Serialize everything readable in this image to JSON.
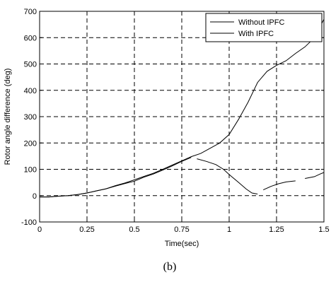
{
  "chart_data": {
    "type": "line",
    "xlabel": "Time(sec)",
    "ylabel": "Rotor angle difference (deg)",
    "xlim": [
      0,
      1.5
    ],
    "ylim": [
      -100,
      700
    ],
    "x_ticks": [
      0,
      0.25,
      0.5,
      0.75,
      1,
      1.25,
      1.5
    ],
    "x_tick_labels": [
      "0",
      "0.25",
      "0.5",
      "0.75",
      "1",
      "1.25",
      "1.5"
    ],
    "y_ticks": [
      -100,
      0,
      100,
      200,
      300,
      400,
      500,
      600,
      700
    ],
    "y_tick_labels": [
      "-100",
      "0",
      "100",
      "200",
      "300",
      "400",
      "500",
      "600",
      "700"
    ],
    "grid": true,
    "grid_style": "dashed",
    "legend_position": "top-right",
    "series": [
      {
        "name": "Without IPFC",
        "color": "#000000",
        "segments": [
          [
            [
              0,
              -5
            ],
            [
              0.05,
              -5
            ],
            [
              0.1,
              -2
            ],
            [
              0.15,
              0
            ],
            [
              0.2,
              4
            ],
            [
              0.25,
              10
            ],
            [
              0.3,
              18
            ],
            [
              0.35,
              26
            ],
            [
              0.4,
              38
            ],
            [
              0.45,
              48
            ],
            [
              0.5,
              60
            ],
            [
              0.55,
              73
            ],
            [
              0.6,
              85
            ],
            [
              0.65,
              100
            ],
            [
              0.7,
              116
            ],
            [
              0.75,
              132
            ],
            [
              0.8,
              148
            ],
            [
              0.85,
              160
            ],
            [
              0.9,
              180
            ],
            [
              0.95,
              200
            ],
            [
              1.0,
              232
            ],
            [
              1.05,
              290
            ],
            [
              1.1,
              355
            ],
            [
              1.15,
              430
            ],
            [
              1.2,
              472
            ],
            [
              1.25,
              495
            ],
            [
              1.3,
              512
            ],
            [
              1.35,
              540
            ],
            [
              1.4,
              565
            ],
            [
              1.45,
              600
            ],
            [
              1.5,
              670
            ]
          ]
        ]
      },
      {
        "name": "With IPFC",
        "color": "#000000",
        "segments": [
          [
            [
              0,
              -5
            ],
            [
              0.05,
              -5
            ],
            [
              0.1,
              -2
            ],
            [
              0.15,
              0
            ],
            [
              0.2,
              4
            ],
            [
              0.25,
              10
            ],
            [
              0.3,
              18
            ],
            [
              0.35,
              26
            ],
            [
              0.4,
              36
            ],
            [
              0.45,
              46
            ],
            [
              0.5,
              55
            ],
            [
              0.55,
              70
            ],
            [
              0.6,
              82
            ],
            [
              0.65,
              97
            ],
            [
              0.7,
              113
            ],
            [
              0.75,
              130
            ],
            [
              0.8,
              145
            ]
          ],
          [
            [
              0.83,
              140
            ],
            [
              0.88,
              130
            ],
            [
              0.93,
              118
            ],
            [
              0.97,
              100
            ],
            [
              1.0,
              80
            ],
            [
              1.05,
              50
            ],
            [
              1.09,
              25
            ],
            [
              1.12,
              10
            ],
            [
              1.15,
              6
            ]
          ],
          [
            [
              1.18,
              22
            ],
            [
              1.22,
              35
            ],
            [
              1.26,
              45
            ],
            [
              1.3,
              52
            ],
            [
              1.35,
              56
            ]
          ],
          [
            [
              1.4,
              65
            ],
            [
              1.45,
              72
            ],
            [
              1.48,
              82
            ],
            [
              1.5,
              88
            ]
          ]
        ]
      }
    ]
  },
  "caption": "(b)"
}
